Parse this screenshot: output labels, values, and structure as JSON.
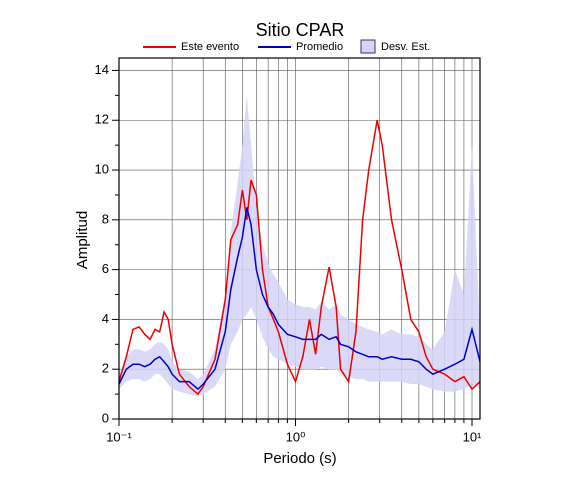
{
  "chart_data": {
    "type": "line",
    "title": "Sitio CPAR",
    "xlabel": "Periodo (s)",
    "ylabel": "Amplitud",
    "xscale": "log",
    "grid": true,
    "xlim": [
      0.1,
      11.1
    ],
    "ylim": [
      0,
      14.5
    ],
    "xticks": [
      {
        "value": 0.1,
        "label": "10⁻¹"
      },
      {
        "value": 1,
        "label": "10⁰"
      },
      {
        "value": 10,
        "label": "10¹"
      }
    ],
    "x_minor_ticks": [
      0.2,
      0.3,
      0.4,
      0.5,
      0.6,
      0.7,
      0.8,
      0.9,
      2,
      3,
      4,
      5,
      6,
      7,
      8,
      9
    ],
    "yticks": [
      0,
      2,
      4,
      6,
      8,
      10,
      12,
      14
    ],
    "y_minor_ticks": [
      1,
      3,
      5,
      7,
      9,
      11,
      13
    ],
    "x": [
      0.1,
      0.11,
      0.12,
      0.13,
      0.14,
      0.15,
      0.16,
      0.17,
      0.18,
      0.19,
      0.2,
      0.22,
      0.25,
      0.28,
      0.3,
      0.35,
      0.4,
      0.43,
      0.47,
      0.5,
      0.53,
      0.56,
      0.6,
      0.65,
      0.7,
      0.75,
      0.8,
      0.9,
      1.0,
      1.1,
      1.2,
      1.3,
      1.4,
      1.55,
      1.7,
      1.8,
      2.0,
      2.2,
      2.4,
      2.6,
      2.9,
      3.1,
      3.5,
      4.0,
      4.5,
      5.0,
      5.5,
      6.0,
      7.0,
      8.0,
      9.0,
      10.0,
      11.1
    ],
    "band": {
      "name": "Desv. Est.",
      "color": "#d4d4f7",
      "edge": "#333366",
      "lower": [
        1.2,
        1.5,
        1.6,
        1.6,
        1.5,
        1.6,
        1.8,
        1.8,
        1.6,
        1.4,
        1.2,
        1.1,
        1.0,
        0.9,
        1.0,
        1.3,
        2.0,
        3.0,
        3.5,
        4.0,
        4.2,
        4.5,
        4.0,
        3.3,
        2.8,
        2.5,
        2.4,
        2.2,
        2.1,
        2.0,
        2.0,
        2.0,
        2.1,
        2.0,
        2.0,
        1.8,
        1.7,
        1.6,
        1.6,
        1.5,
        1.5,
        1.5,
        1.5,
        1.5,
        1.4,
        1.4,
        1.3,
        1.2,
        1.1,
        1.1,
        1.2,
        1.4,
        1.2
      ],
      "upper": [
        1.8,
        2.5,
        2.8,
        2.8,
        2.7,
        2.8,
        3.0,
        3.1,
        3.0,
        2.8,
        2.3,
        2.0,
        1.9,
        1.6,
        1.8,
        2.8,
        5.0,
        7.5,
        9.5,
        11.0,
        13.0,
        11.0,
        8.5,
        7.0,
        6.2,
        5.8,
        5.5,
        4.8,
        4.6,
        4.5,
        4.5,
        4.4,
        4.7,
        4.4,
        4.6,
        4.2,
        4.0,
        3.8,
        3.7,
        3.6,
        3.5,
        3.4,
        3.6,
        3.4,
        3.4,
        3.3,
        3.0,
        2.8,
        3.5,
        6.0,
        5.0,
        11.0,
        3.5
      ]
    },
    "series": [
      {
        "name": "Este evento",
        "color": "#ee0000",
        "values": [
          1.5,
          2.5,
          3.6,
          3.7,
          3.4,
          3.2,
          3.6,
          3.5,
          4.3,
          4.0,
          3.0,
          1.8,
          1.3,
          1.0,
          1.3,
          2.4,
          4.8,
          7.2,
          7.8,
          9.2,
          8.0,
          9.6,
          9.0,
          6.0,
          4.5,
          4.0,
          3.5,
          2.2,
          1.5,
          2.5,
          4.0,
          2.6,
          4.5,
          6.1,
          4.5,
          2.0,
          1.5,
          3.5,
          8.0,
          10.0,
          12.0,
          11.0,
          8.0,
          6.0,
          4.0,
          3.5,
          2.5,
          2.0,
          1.8,
          1.5,
          1.7,
          1.2,
          1.5
        ]
      },
      {
        "name": "Promedio",
        "color": "#0000cc",
        "values": [
          1.4,
          2.0,
          2.2,
          2.2,
          2.1,
          2.2,
          2.4,
          2.5,
          2.3,
          2.1,
          1.8,
          1.5,
          1.5,
          1.2,
          1.4,
          2.0,
          3.5,
          5.2,
          6.5,
          7.3,
          8.5,
          7.8,
          6.0,
          5.0,
          4.5,
          4.2,
          3.8,
          3.4,
          3.3,
          3.2,
          3.2,
          3.2,
          3.4,
          3.2,
          3.3,
          3.0,
          2.9,
          2.7,
          2.6,
          2.5,
          2.5,
          2.4,
          2.5,
          2.4,
          2.4,
          2.3,
          2.0,
          1.8,
          2.0,
          2.2,
          2.4,
          3.6,
          2.3
        ]
      }
    ]
  }
}
